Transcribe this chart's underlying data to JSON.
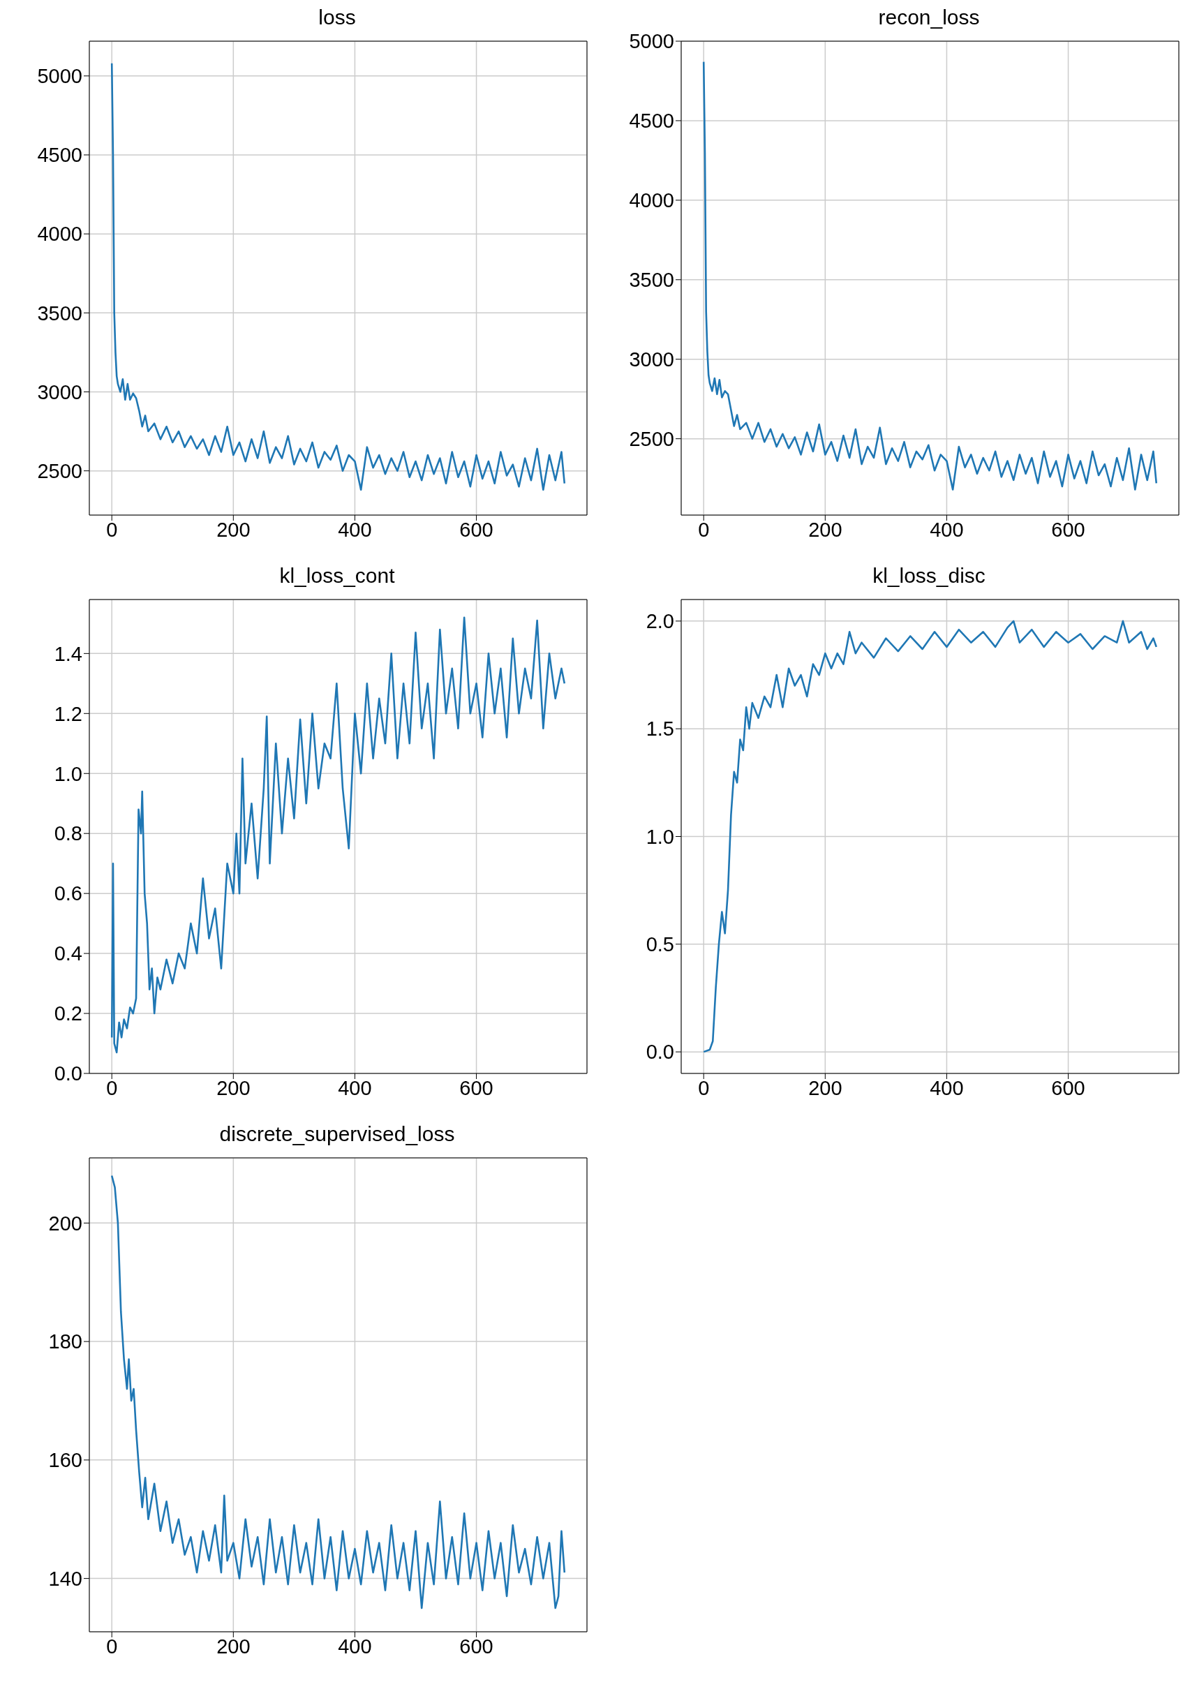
{
  "chart_data": [
    {
      "type": "line",
      "title": "loss",
      "color": "#1f77b4",
      "grid": true,
      "xlim": [
        -37,
        782
      ],
      "xticks": [
        0,
        200,
        400,
        600
      ],
      "ylim": [
        2220,
        5220
      ],
      "yticks": [
        2500,
        3000,
        3500,
        4000,
        4500,
        5000
      ],
      "x": [
        0,
        2,
        4,
        6,
        8,
        10,
        14,
        18,
        22,
        26,
        30,
        35,
        40,
        45,
        50,
        55,
        60,
        70,
        80,
        90,
        100,
        110,
        120,
        130,
        140,
        150,
        160,
        170,
        180,
        190,
        200,
        210,
        220,
        230,
        240,
        250,
        260,
        270,
        280,
        290,
        300,
        310,
        320,
        330,
        340,
        350,
        360,
        370,
        380,
        390,
        400,
        410,
        420,
        430,
        440,
        450,
        460,
        470,
        480,
        490,
        500,
        510,
        520,
        530,
        540,
        550,
        560,
        570,
        580,
        590,
        600,
        610,
        620,
        630,
        640,
        650,
        660,
        670,
        680,
        690,
        700,
        710,
        720,
        730,
        740,
        745
      ],
      "values": [
        5080,
        4500,
        3500,
        3250,
        3100,
        3050,
        3000,
        3080,
        2950,
        3050,
        2950,
        2990,
        2960,
        2880,
        2780,
        2850,
        2750,
        2800,
        2700,
        2780,
        2680,
        2750,
        2650,
        2720,
        2640,
        2700,
        2600,
        2720,
        2620,
        2780,
        2600,
        2680,
        2560,
        2700,
        2580,
        2750,
        2550,
        2650,
        2580,
        2720,
        2540,
        2640,
        2560,
        2680,
        2520,
        2620,
        2570,
        2660,
        2500,
        2600,
        2560,
        2380,
        2650,
        2520,
        2600,
        2480,
        2580,
        2500,
        2620,
        2460,
        2560,
        2440,
        2600,
        2480,
        2580,
        2420,
        2620,
        2460,
        2560,
        2400,
        2600,
        2450,
        2560,
        2420,
        2620,
        2470,
        2540,
        2400,
        2580,
        2440,
        2640,
        2380,
        2600,
        2440,
        2620,
        2420
      ]
    },
    {
      "type": "line",
      "title": "recon_loss",
      "color": "#1f77b4",
      "grid": true,
      "xlim": [
        -37,
        782
      ],
      "xticks": [
        0,
        200,
        400,
        600
      ],
      "ylim": [
        2020,
        5000
      ],
      "yticks": [
        2500,
        3000,
        3500,
        4000,
        4500,
        5000
      ],
      "x": [
        0,
        2,
        4,
        6,
        8,
        10,
        14,
        18,
        22,
        26,
        30,
        35,
        40,
        45,
        50,
        55,
        60,
        70,
        80,
        90,
        100,
        110,
        120,
        130,
        140,
        150,
        160,
        170,
        180,
        190,
        200,
        210,
        220,
        230,
        240,
        250,
        260,
        270,
        280,
        290,
        300,
        310,
        320,
        330,
        340,
        350,
        360,
        370,
        380,
        390,
        400,
        410,
        420,
        430,
        440,
        450,
        460,
        470,
        480,
        490,
        500,
        510,
        520,
        530,
        540,
        550,
        560,
        570,
        580,
        590,
        600,
        610,
        620,
        630,
        640,
        650,
        660,
        670,
        680,
        690,
        700,
        710,
        720,
        730,
        740,
        745
      ],
      "values": [
        4870,
        4300,
        3300,
        3050,
        2900,
        2850,
        2800,
        2880,
        2780,
        2870,
        2760,
        2800,
        2780,
        2680,
        2580,
        2650,
        2560,
        2600,
        2500,
        2600,
        2480,
        2560,
        2450,
        2530,
        2440,
        2510,
        2400,
        2540,
        2420,
        2590,
        2400,
        2480,
        2360,
        2520,
        2380,
        2560,
        2340,
        2450,
        2380,
        2570,
        2340,
        2440,
        2360,
        2480,
        2320,
        2420,
        2370,
        2460,
        2300,
        2400,
        2360,
        2180,
        2450,
        2320,
        2400,
        2280,
        2380,
        2300,
        2420,
        2260,
        2360,
        2240,
        2400,
        2280,
        2380,
        2220,
        2420,
        2260,
        2360,
        2200,
        2400,
        2250,
        2360,
        2220,
        2420,
        2270,
        2340,
        2200,
        2380,
        2240,
        2440,
        2180,
        2400,
        2240,
        2420,
        2220
      ]
    },
    {
      "type": "line",
      "title": "kl_loss_cont",
      "color": "#1f77b4",
      "grid": true,
      "xlim": [
        -37,
        782
      ],
      "xticks": [
        0,
        200,
        400,
        600
      ],
      "ylim": [
        0,
        1.58
      ],
      "yticks": [
        {
          "value": 0,
          "label": "0.0"
        },
        0.2,
        0.4,
        0.6,
        0.8,
        {
          "value": 1,
          "label": "1.0"
        },
        1.2,
        1.4
      ],
      "x": [
        0,
        2,
        4,
        8,
        12,
        16,
        20,
        25,
        30,
        35,
        40,
        44,
        48,
        50,
        54,
        58,
        62,
        66,
        70,
        75,
        80,
        90,
        100,
        110,
        120,
        130,
        140,
        150,
        160,
        170,
        180,
        190,
        200,
        205,
        210,
        215,
        220,
        230,
        240,
        250,
        255,
        260,
        270,
        280,
        290,
        300,
        310,
        320,
        330,
        340,
        350,
        360,
        370,
        380,
        390,
        400,
        410,
        420,
        430,
        440,
        450,
        460,
        470,
        480,
        490,
        500,
        510,
        520,
        530,
        540,
        550,
        560,
        570,
        580,
        590,
        600,
        610,
        620,
        630,
        640,
        650,
        660,
        670,
        680,
        690,
        700,
        710,
        720,
        730,
        740,
        745
      ],
      "values": [
        0.12,
        0.7,
        0.1,
        0.07,
        0.17,
        0.12,
        0.18,
        0.15,
        0.22,
        0.2,
        0.25,
        0.88,
        0.8,
        0.94,
        0.6,
        0.5,
        0.28,
        0.35,
        0.2,
        0.32,
        0.28,
        0.38,
        0.3,
        0.4,
        0.35,
        0.5,
        0.4,
        0.65,
        0.45,
        0.55,
        0.35,
        0.7,
        0.6,
        0.8,
        0.6,
        1.05,
        0.7,
        0.9,
        0.65,
        0.95,
        1.19,
        0.7,
        1.1,
        0.8,
        1.05,
        0.85,
        1.18,
        0.9,
        1.2,
        0.95,
        1.1,
        1.05,
        1.3,
        0.95,
        0.75,
        1.2,
        1.0,
        1.3,
        1.05,
        1.25,
        1.1,
        1.4,
        1.05,
        1.3,
        1.1,
        1.47,
        1.15,
        1.3,
        1.05,
        1.48,
        1.2,
        1.35,
        1.15,
        1.52,
        1.2,
        1.3,
        1.12,
        1.4,
        1.2,
        1.35,
        1.12,
        1.45,
        1.2,
        1.35,
        1.25,
        1.51,
        1.15,
        1.4,
        1.25,
        1.35,
        1.3
      ]
    },
    {
      "type": "line",
      "title": "kl_loss_disc",
      "color": "#1f77b4",
      "grid": true,
      "xlim": [
        -37,
        782
      ],
      "xticks": [
        0,
        200,
        400,
        600
      ],
      "ylim": [
        -0.1,
        2.1
      ],
      "yticks": [
        {
          "value": 0,
          "label": "0.0"
        },
        0.5,
        {
          "value": 1,
          "label": "1.0"
        },
        1.5,
        {
          "value": 2,
          "label": "2.0"
        }
      ],
      "x": [
        0,
        10,
        15,
        20,
        25,
        30,
        35,
        40,
        45,
        50,
        55,
        60,
        65,
        70,
        75,
        80,
        90,
        100,
        110,
        120,
        130,
        140,
        150,
        160,
        170,
        180,
        190,
        200,
        210,
        220,
        230,
        240,
        250,
        260,
        280,
        300,
        320,
        340,
        360,
        380,
        400,
        420,
        440,
        460,
        480,
        500,
        510,
        520,
        540,
        560,
        580,
        600,
        620,
        640,
        660,
        680,
        690,
        700,
        720,
        730,
        740,
        745
      ],
      "values": [
        0.0,
        0.01,
        0.05,
        0.3,
        0.5,
        0.65,
        0.55,
        0.75,
        1.1,
        1.3,
        1.25,
        1.45,
        1.4,
        1.6,
        1.5,
        1.62,
        1.55,
        1.65,
        1.6,
        1.75,
        1.6,
        1.78,
        1.7,
        1.75,
        1.65,
        1.8,
        1.75,
        1.85,
        1.78,
        1.85,
        1.8,
        1.95,
        1.85,
        1.9,
        1.83,
        1.92,
        1.86,
        1.93,
        1.87,
        1.95,
        1.88,
        1.96,
        1.9,
        1.95,
        1.88,
        1.97,
        2.0,
        1.9,
        1.96,
        1.88,
        1.95,
        1.9,
        1.94,
        1.87,
        1.93,
        1.9,
        2.0,
        1.9,
        1.95,
        1.87,
        1.92,
        1.88
      ]
    },
    {
      "type": "line",
      "title": "discrete_supervised_loss",
      "color": "#1f77b4",
      "grid": true,
      "xlim": [
        -37,
        782
      ],
      "xticks": [
        0,
        200,
        400,
        600
      ],
      "ylim": [
        131,
        211
      ],
      "yticks": [
        140,
        160,
        180,
        200
      ],
      "x": [
        0,
        5,
        10,
        15,
        20,
        25,
        28,
        32,
        36,
        40,
        45,
        50,
        55,
        60,
        70,
        80,
        90,
        100,
        110,
        120,
        130,
        140,
        150,
        160,
        170,
        180,
        185,
        190,
        200,
        210,
        220,
        230,
        240,
        250,
        260,
        270,
        280,
        290,
        300,
        310,
        320,
        330,
        340,
        350,
        360,
        370,
        380,
        390,
        400,
        410,
        420,
        430,
        440,
        450,
        460,
        470,
        480,
        490,
        500,
        510,
        520,
        530,
        540,
        550,
        560,
        570,
        580,
        590,
        600,
        610,
        620,
        630,
        640,
        650,
        660,
        670,
        680,
        690,
        700,
        710,
        720,
        730,
        735,
        740,
        745
      ],
      "values": [
        208,
        206,
        200,
        185,
        177,
        172,
        177,
        170,
        172,
        165,
        158,
        152,
        157,
        150,
        156,
        148,
        153,
        146,
        150,
        144,
        147,
        141,
        148,
        143,
        149,
        141,
        154,
        143,
        146,
        140,
        150,
        142,
        147,
        139,
        150,
        141,
        147,
        139,
        149,
        141,
        146,
        139,
        150,
        140,
        147,
        138,
        148,
        140,
        145,
        139,
        148,
        141,
        146,
        138,
        149,
        140,
        146,
        138,
        148,
        135,
        146,
        139,
        153,
        140,
        147,
        139,
        151,
        140,
        146,
        138,
        148,
        140,
        146,
        137,
        149,
        141,
        145,
        139,
        147,
        140,
        146,
        135,
        137,
        148,
        141
      ]
    }
  ]
}
